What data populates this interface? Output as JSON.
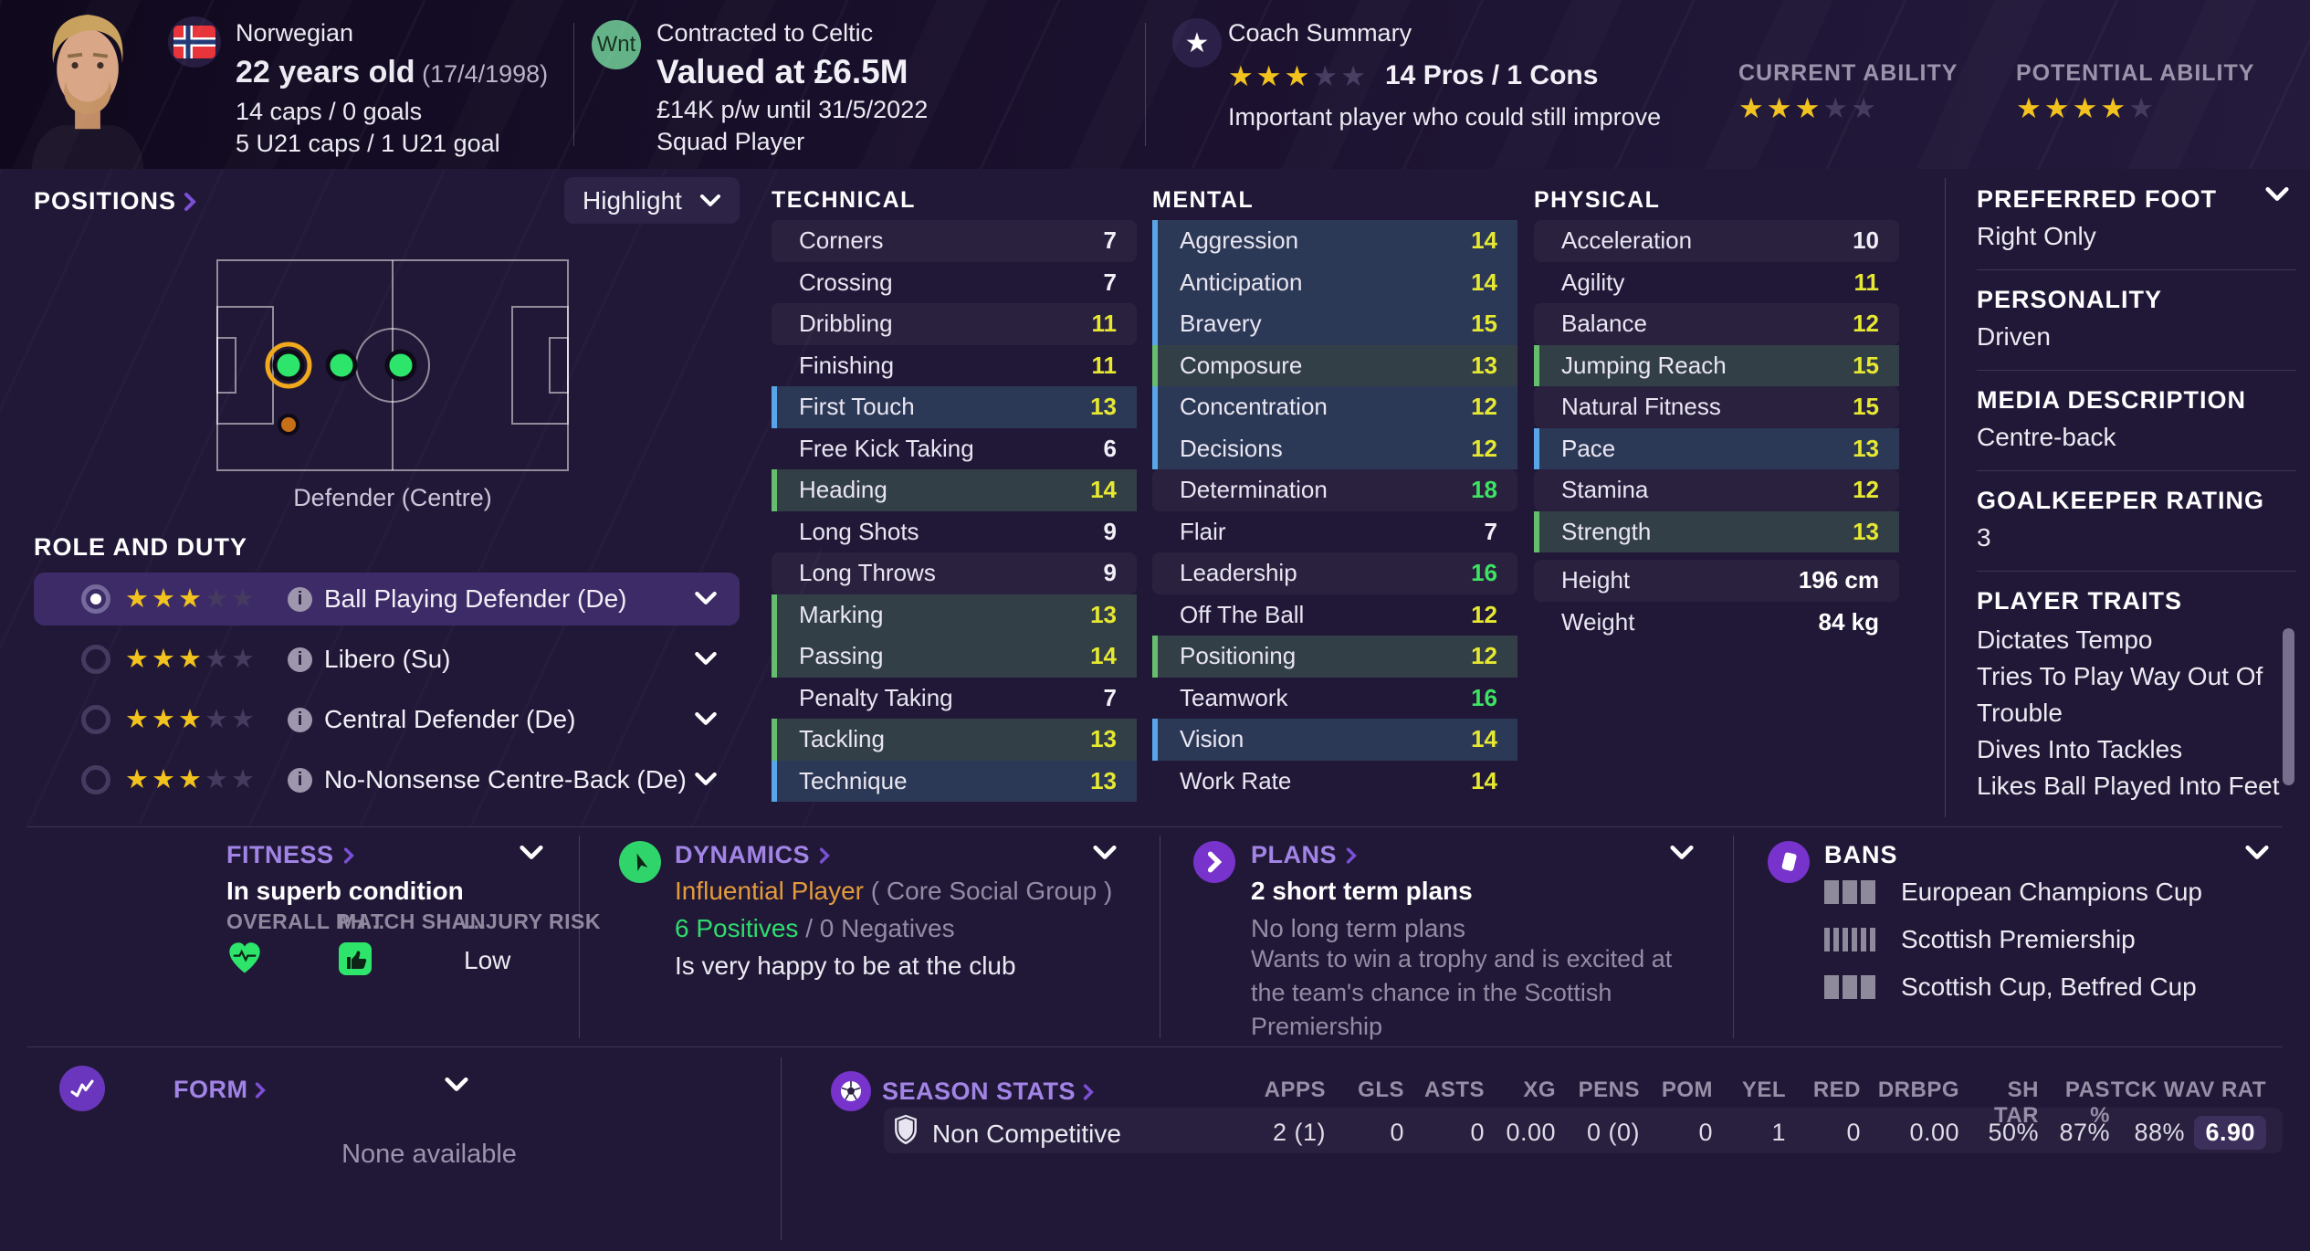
{
  "theme": {
    "accent_purple": "#a284e6",
    "gold_star": "#f2c21e",
    "attr_yellow": "#e6e831",
    "attr_green": "#3ee364",
    "blue_bar": "#58a6e8",
    "green_bar": "#66bd6d",
    "positive_green": "#2edd6d",
    "warning_orange": "#e39b3c"
  },
  "header": {
    "nationality": "Norwegian",
    "age_bold": "22 years old",
    "age_date": "(17/4/1998)",
    "caps_line": "14 caps / 0 goals",
    "u21_line": "5 U21 caps / 1 U21 goal",
    "transfer_badge": "Wnt",
    "contract_club": "Contracted to Celtic",
    "contract_value": "Valued at £6.5M",
    "contract_wage": "£14K p/w until 31/5/2022",
    "squad_status": "Squad Player",
    "coach_summary_title": "Coach Summary",
    "coach_summary_stars": 3,
    "coach_summary_pros": "14 Pros / 1 Cons",
    "coach_summary_note": "Important player who could still improve",
    "current_ability_label": "CURRENT ABILITY",
    "current_ability_stars": 3,
    "potential_ability_label": "POTENTIAL ABILITY",
    "potential_ability_stars": 4,
    "stars_max": 5
  },
  "positions": {
    "title": "POSITIONS",
    "highlight_label": "Highlight",
    "caption": "Defender (Centre)"
  },
  "role_and_duty": {
    "title": "ROLE AND DUTY",
    "roles": [
      {
        "name": "Ball Playing Defender (De)",
        "stars": 3,
        "selected": true
      },
      {
        "name": "Libero (Su)",
        "stars": 3,
        "selected": false
      },
      {
        "name": "Central Defender (De)",
        "stars": 3,
        "selected": false
      },
      {
        "name": "No-Nonsense Centre-Back (De)",
        "stars": 3,
        "selected": false
      }
    ]
  },
  "attributes": {
    "technical": {
      "title": "TECHNICAL",
      "rows": [
        {
          "label": "Corners",
          "value": "7",
          "highlight": null
        },
        {
          "label": "Crossing",
          "value": "7",
          "highlight": null
        },
        {
          "label": "Dribbling",
          "value": "11",
          "highlight": null
        },
        {
          "label": "Finishing",
          "value": "11",
          "highlight": null
        },
        {
          "label": "First Touch",
          "value": "13",
          "highlight": "blue"
        },
        {
          "label": "Free Kick Taking",
          "value": "6",
          "highlight": null
        },
        {
          "label": "Heading",
          "value": "14",
          "highlight": "green"
        },
        {
          "label": "Long Shots",
          "value": "9",
          "highlight": null
        },
        {
          "label": "Long Throws",
          "value": "9",
          "highlight": null
        },
        {
          "label": "Marking",
          "value": "13",
          "highlight": "green"
        },
        {
          "label": "Passing",
          "value": "14",
          "highlight": "green"
        },
        {
          "label": "Penalty Taking",
          "value": "7",
          "highlight": null
        },
        {
          "label": "Tackling",
          "value": "13",
          "highlight": "green"
        },
        {
          "label": "Technique",
          "value": "13",
          "highlight": "blue"
        }
      ]
    },
    "mental": {
      "title": "MENTAL",
      "rows": [
        {
          "label": "Aggression",
          "value": "14",
          "highlight": "blue"
        },
        {
          "label": "Anticipation",
          "value": "14",
          "highlight": "blue"
        },
        {
          "label": "Bravery",
          "value": "15",
          "highlight": "blue"
        },
        {
          "label": "Composure",
          "value": "13",
          "highlight": "green"
        },
        {
          "label": "Concentration",
          "value": "12",
          "highlight": "blue"
        },
        {
          "label": "Decisions",
          "value": "12",
          "highlight": "blue"
        },
        {
          "label": "Determination",
          "value": "18",
          "highlight": null
        },
        {
          "label": "Flair",
          "value": "7",
          "highlight": null
        },
        {
          "label": "Leadership",
          "value": "16",
          "highlight": null
        },
        {
          "label": "Off The Ball",
          "value": "12",
          "highlight": null
        },
        {
          "label": "Positioning",
          "value": "12",
          "highlight": "green"
        },
        {
          "label": "Teamwork",
          "value": "16",
          "highlight": null
        },
        {
          "label": "Vision",
          "value": "14",
          "highlight": "blue"
        },
        {
          "label": "Work Rate",
          "value": "14",
          "highlight": null
        }
      ]
    },
    "physical": {
      "title": "PHYSICAL",
      "rows": [
        {
          "label": "Acceleration",
          "value": "10",
          "highlight": null
        },
        {
          "label": "Agility",
          "value": "11",
          "highlight": null
        },
        {
          "label": "Balance",
          "value": "12",
          "highlight": null
        },
        {
          "label": "Jumping Reach",
          "value": "15",
          "highlight": "green"
        },
        {
          "label": "Natural Fitness",
          "value": "15",
          "highlight": null
        },
        {
          "label": "Pace",
          "value": "13",
          "highlight": "blue"
        },
        {
          "label": "Stamina",
          "value": "12",
          "highlight": null
        },
        {
          "label": "Strength",
          "value": "13",
          "highlight": "green"
        }
      ],
      "meta": [
        {
          "label": "Height",
          "value": "196 cm"
        },
        {
          "label": "Weight",
          "value": "84 kg"
        }
      ]
    }
  },
  "details": {
    "preferred_foot_label": "PREFERRED FOOT",
    "preferred_foot": "Right Only",
    "personality_label": "PERSONALITY",
    "personality": "Driven",
    "media_label": "MEDIA DESCRIPTION",
    "media": "Centre-back",
    "gk_label": "GOALKEEPER RATING",
    "gk": "3",
    "traits_label": "PLAYER TRAITS",
    "traits": [
      "Dictates Tempo",
      "Tries To Play Way Out Of Trouble",
      "Dives Into Tackles",
      "Likes Ball Played Into Feet"
    ]
  },
  "fitness": {
    "title": "FITNESS",
    "condition": "In superb condition",
    "col1": "OVERALL PH...",
    "col2": "MATCH SHA...",
    "col3": "INJURY RISK",
    "injury_risk": "Low"
  },
  "dynamics": {
    "title": "DYNAMICS",
    "status": "Influential Player",
    "group": "( Core Social Group )",
    "positives": "6 Positives",
    "separator": "/",
    "negatives": "0 Negatives",
    "happiness": "Is very happy to be at the club"
  },
  "plans": {
    "title": "PLANS",
    "short_plans": "2 short term plans",
    "long_plans": "No long term plans",
    "note": "Wants to win a trophy and is excited at the team's chance in the Scottish Premiership"
  },
  "bans": {
    "title": "BANS",
    "items": [
      {
        "pattern": "blocks",
        "name": "European Champions Cup"
      },
      {
        "pattern": "stripes",
        "name": "Scottish Premiership"
      },
      {
        "pattern": "blocks",
        "name": "Scottish Cup, Betfred Cup"
      }
    ]
  },
  "form": {
    "title": "FORM",
    "empty": "None available"
  },
  "season_stats": {
    "title": "SEASON STATS",
    "columns": [
      "APPS",
      "GLS",
      "ASTS",
      "XG",
      "PENS",
      "POM",
      "YEL",
      "RED",
      "DRBPG",
      "SH TAR",
      "PAS %",
      "TCK W",
      "AV RAT"
    ],
    "row": {
      "competition": "Non Competitive",
      "values": [
        "2 (1)",
        "0",
        "0",
        "0.00",
        "0 (0)",
        "0",
        "1",
        "0",
        "0.00",
        "50%",
        "87%",
        "88%",
        "6.90"
      ]
    }
  }
}
